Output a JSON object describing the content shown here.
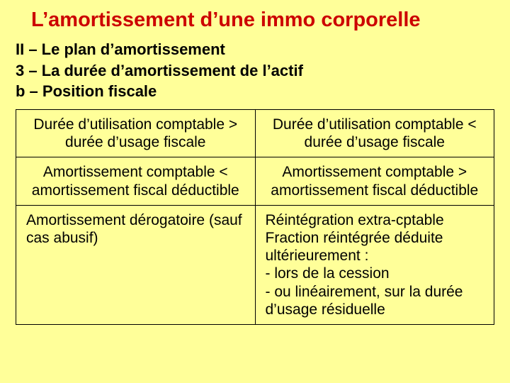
{
  "title": "L’amortissement d’une immo corporelle",
  "subheads": {
    "line1": "II – Le plan d’amortissement",
    "line2": "3 – La durée d’amortissement de l’actif",
    "line3": "b – Position fiscale"
  },
  "table": {
    "columns": [
      "left",
      "right"
    ],
    "col_widths": [
      "50%",
      "50%"
    ],
    "cell_font_family": "Comic Sans MS",
    "cell_font_size_pt": 16,
    "border_color": "#000000",
    "rows": [
      {
        "align": "center",
        "left": "Durée d’utilisation comptable > durée d’usage fiscale",
        "right": "Durée d’utilisation comptable < durée d’usage fiscale"
      },
      {
        "align": "center",
        "left": "Amortissement comptable < amortissement fiscal déductible",
        "right": "Amortissement comptable > amortissement fiscal déductible"
      },
      {
        "align": "left",
        "left": "Amortissement dérogatoire (sauf cas abusif)",
        "right": "Réintégration extra-cptable Fraction réintégrée déduite ultérieurement :\n- lors de la cession\n- ou linéairement, sur la durée d’usage résiduelle"
      }
    ]
  },
  "colors": {
    "background": "#ffff99",
    "title": "#cc0000",
    "text": "#000000"
  }
}
